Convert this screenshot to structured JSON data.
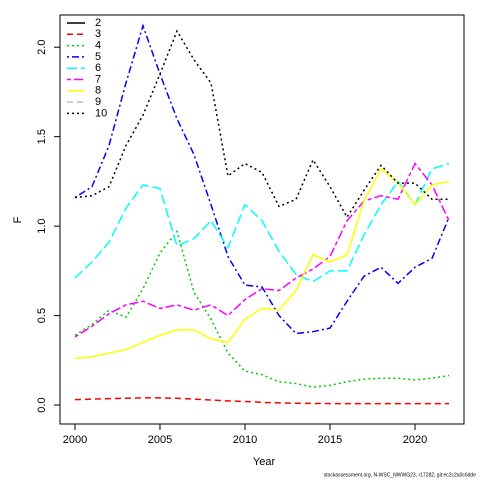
{
  "chart_data": {
    "type": "line",
    "xlabel": "Year",
    "ylabel": "F",
    "footer": "stockassessment.org, N-WSC_NWWG23, r17282, git:ec2c2a0c6dde",
    "x": [
      2000,
      2001,
      2002,
      2003,
      2004,
      2005,
      2006,
      2007,
      2008,
      2009,
      2010,
      2011,
      2012,
      2013,
      2014,
      2015,
      2016,
      2017,
      2018,
      2019,
      2020,
      2021,
      2022
    ],
    "xlim": [
      1999.12,
      2022.88
    ],
    "xticks": [
      2000,
      2005,
      2010,
      2015,
      2020
    ],
    "ylim": [
      -0.106,
      2.18
    ],
    "yticks": [
      {
        "value": 0,
        "label": "0.0"
      },
      {
        "value": 0.5,
        "label": "0.5"
      },
      {
        "value": 1,
        "label": "1.0"
      },
      {
        "value": 1.5,
        "label": "1.5"
      },
      {
        "value": 2,
        "label": "2.0"
      }
    ],
    "legend": "top-left",
    "series": [
      {
        "name": "2",
        "color": "#000000",
        "dash": "solid",
        "values": [
          null,
          null,
          null,
          null,
          null,
          null,
          null,
          null,
          null,
          null,
          null,
          null,
          null,
          null,
          null,
          null,
          null,
          null,
          null,
          null,
          null,
          null,
          null
        ]
      },
      {
        "name": "3",
        "color": "#ff0000",
        "dash": "dashed",
        "values": [
          0.03,
          0.033,
          0.036,
          0.038,
          0.04,
          0.04,
          0.038,
          0.033,
          0.028,
          0.023,
          0.02,
          0.015,
          0.012,
          0.01,
          0.009,
          0.008,
          0.008,
          0.008,
          0.008,
          0.008,
          0.008,
          0.008,
          0.008
        ]
      },
      {
        "name": "4",
        "color": "#00cd00",
        "dash": "dotted",
        "values": [
          0.39,
          0.45,
          0.53,
          0.49,
          0.65,
          0.85,
          0.97,
          0.63,
          0.48,
          0.29,
          0.19,
          0.17,
          0.13,
          0.12,
          0.1,
          0.11,
          0.13,
          0.145,
          0.15,
          0.15,
          0.14,
          0.15,
          0.165
        ]
      },
      {
        "name": "5",
        "color": "#0000ff",
        "dash": "dotdash",
        "values": [
          1.16,
          1.22,
          1.45,
          1.8,
          2.12,
          1.85,
          1.6,
          1.4,
          1.12,
          0.83,
          0.67,
          0.66,
          0.5,
          0.4,
          0.41,
          0.43,
          0.58,
          0.72,
          0.77,
          0.68,
          0.77,
          0.82,
          1.05
        ]
      },
      {
        "name": "6",
        "color": "#00ffff",
        "dash": "longdash",
        "values": [
          0.71,
          0.8,
          0.91,
          1.1,
          1.23,
          1.21,
          0.89,
          0.93,
          1.03,
          0.88,
          1.12,
          1.03,
          0.86,
          0.73,
          0.69,
          0.75,
          0.75,
          0.95,
          1.12,
          1.25,
          1.12,
          1.32,
          1.35
        ]
      },
      {
        "name": "7",
        "color": "#ff00ff",
        "dash": "twodash",
        "values": [
          0.38,
          0.44,
          0.51,
          0.56,
          0.58,
          0.54,
          0.56,
          0.53,
          0.56,
          0.5,
          0.59,
          0.65,
          0.64,
          0.71,
          0.76,
          0.83,
          1.03,
          1.14,
          1.17,
          1.15,
          1.35,
          1.23,
          1.03
        ]
      },
      {
        "name": "8",
        "color": "#ffff00",
        "dash": "solid",
        "values": [
          0.26,
          0.27,
          0.29,
          0.31,
          0.35,
          0.39,
          0.42,
          0.42,
          0.37,
          0.35,
          0.48,
          0.54,
          0.53,
          0.64,
          0.84,
          0.8,
          0.84,
          1.14,
          1.32,
          1.24,
          1.12,
          1.23,
          1.25
        ]
      },
      {
        "name": "9",
        "color": "#bebebe",
        "dash": "dashed",
        "values": [
          null,
          null,
          null,
          null,
          null,
          null,
          null,
          null,
          null,
          null,
          null,
          null,
          null,
          null,
          null,
          null,
          null,
          null,
          null,
          null,
          null,
          null,
          null
        ]
      },
      {
        "name": "10",
        "color": "#000000",
        "dash": "dotted",
        "values": [
          1.16,
          1.17,
          1.22,
          1.45,
          1.62,
          1.85,
          2.09,
          1.93,
          1.8,
          1.28,
          1.35,
          1.3,
          1.11,
          1.15,
          1.37,
          1.22,
          1.05,
          1.2,
          1.34,
          1.24,
          1.24,
          1.15,
          1.15
        ]
      }
    ]
  }
}
